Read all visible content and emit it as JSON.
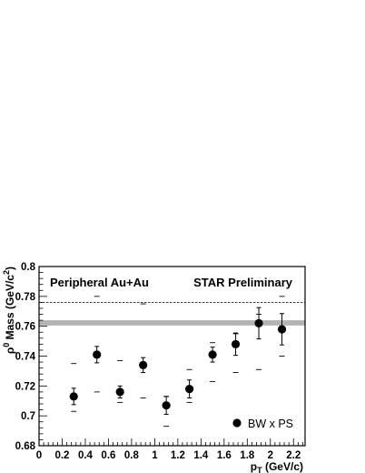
{
  "chart_data": {
    "type": "scatter",
    "xlabel": "p",
    "xlabel_sub": "T",
    "xlabel_unit": " (GeV/c)",
    "ylabel_sup": "0",
    "ylabel_main": " Mass (GeV/c",
    "ylabel_sup2": "2",
    "ylabel_close": ")",
    "xlim": [
      0,
      2.3
    ],
    "ylim": [
      0.68,
      0.8
    ],
    "x_ticks": [
      0,
      0.2,
      0.4,
      0.6,
      0.8,
      1,
      1.2,
      1.4,
      1.6,
      1.8,
      2,
      2.2
    ],
    "x_tick_labels": [
      "0",
      "0.2",
      "0.4",
      "0.6",
      "0.8",
      "1",
      "1.2",
      "1.4",
      "1.6",
      "1.8",
      "2",
      "2.2"
    ],
    "y_ticks": [
      0.68,
      0.7,
      0.72,
      0.74,
      0.76,
      0.78,
      0.8
    ],
    "y_tick_labels": [
      "0.68",
      "0.7",
      "0.72",
      "0.74",
      "0.76",
      "0.78",
      "0.8"
    ],
    "grid": false,
    "legend_position": "bottom-right",
    "annotations": {
      "left": "Peripheral Au+Au",
      "right": "STAR Preliminary"
    },
    "reference_lines": {
      "dashed_value": 0.776,
      "band": [
        0.7605,
        0.764
      ]
    },
    "series": [
      {
        "name": "BW x PS",
        "marker": "filled-circle",
        "color": "#000000",
        "x": [
          0.3,
          0.5,
          0.7,
          0.9,
          1.1,
          1.3,
          1.5,
          1.7,
          1.9,
          2.1
        ],
        "y": [
          0.713,
          0.741,
          0.716,
          0.734,
          0.707,
          0.718,
          0.741,
          0.748,
          0.762,
          0.758
        ],
        "err": [
          0.0055,
          0.0055,
          0.004,
          0.005,
          0.006,
          0.006,
          0.005,
          0.0075,
          0.0105,
          0.0105
        ],
        "sys_low": [
          0.703,
          0.716,
          0.709,
          0.712,
          0.693,
          0.709,
          0.723,
          0.729,
          0.731,
          0.74
        ],
        "sys_high": [
          0.735,
          0.78,
          0.737,
          0.775,
          0.713,
          0.731,
          0.749,
          0.755,
          0.768,
          0.78
        ]
      }
    ]
  }
}
